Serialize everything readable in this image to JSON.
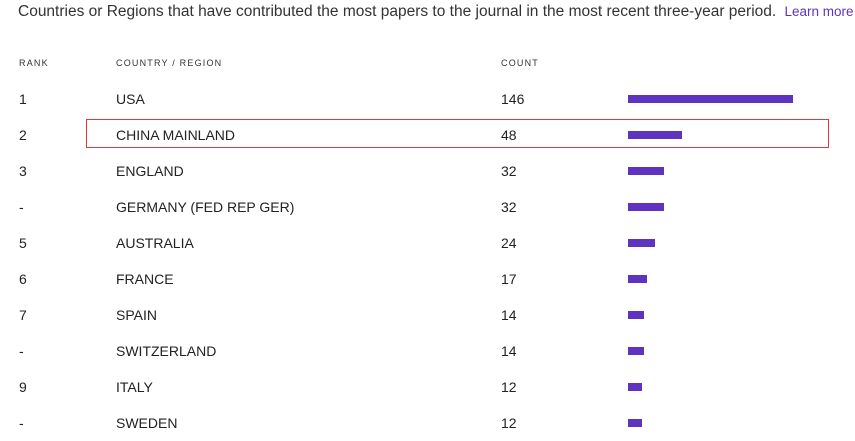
{
  "intro": {
    "text": "Countries or Regions that have contributed the most papers to the journal in the most recent three-year period.",
    "learn_more": "Learn more"
  },
  "table": {
    "headers": {
      "rank": "RANK",
      "country": "COUNTRY / REGION",
      "count": "COUNT"
    },
    "highlighted_row": 1,
    "colors": {
      "bar": "#5e33bf",
      "highlight_border": "#e0393b",
      "link": "#5e33bf"
    }
  },
  "chart_data": {
    "type": "bar",
    "orientation": "horizontal",
    "title": "",
    "rows": [
      {
        "rank": "1",
        "country": "USA",
        "count": 146
      },
      {
        "rank": "2",
        "country": "CHINA MAINLAND",
        "count": 48
      },
      {
        "rank": "3",
        "country": "ENGLAND",
        "count": 32
      },
      {
        "rank": "-",
        "country": "GERMANY (FED REP GER)",
        "count": 32
      },
      {
        "rank": "5",
        "country": "AUSTRALIA",
        "count": 24
      },
      {
        "rank": "6",
        "country": "FRANCE",
        "count": 17
      },
      {
        "rank": "7",
        "country": "SPAIN",
        "count": 14
      },
      {
        "rank": "-",
        "country": "SWITZERLAND",
        "count": 14
      },
      {
        "rank": "9",
        "country": "ITALY",
        "count": 12
      },
      {
        "rank": "-",
        "country": "SWEDEN",
        "count": 12
      }
    ],
    "xlim": [
      0,
      146
    ]
  }
}
